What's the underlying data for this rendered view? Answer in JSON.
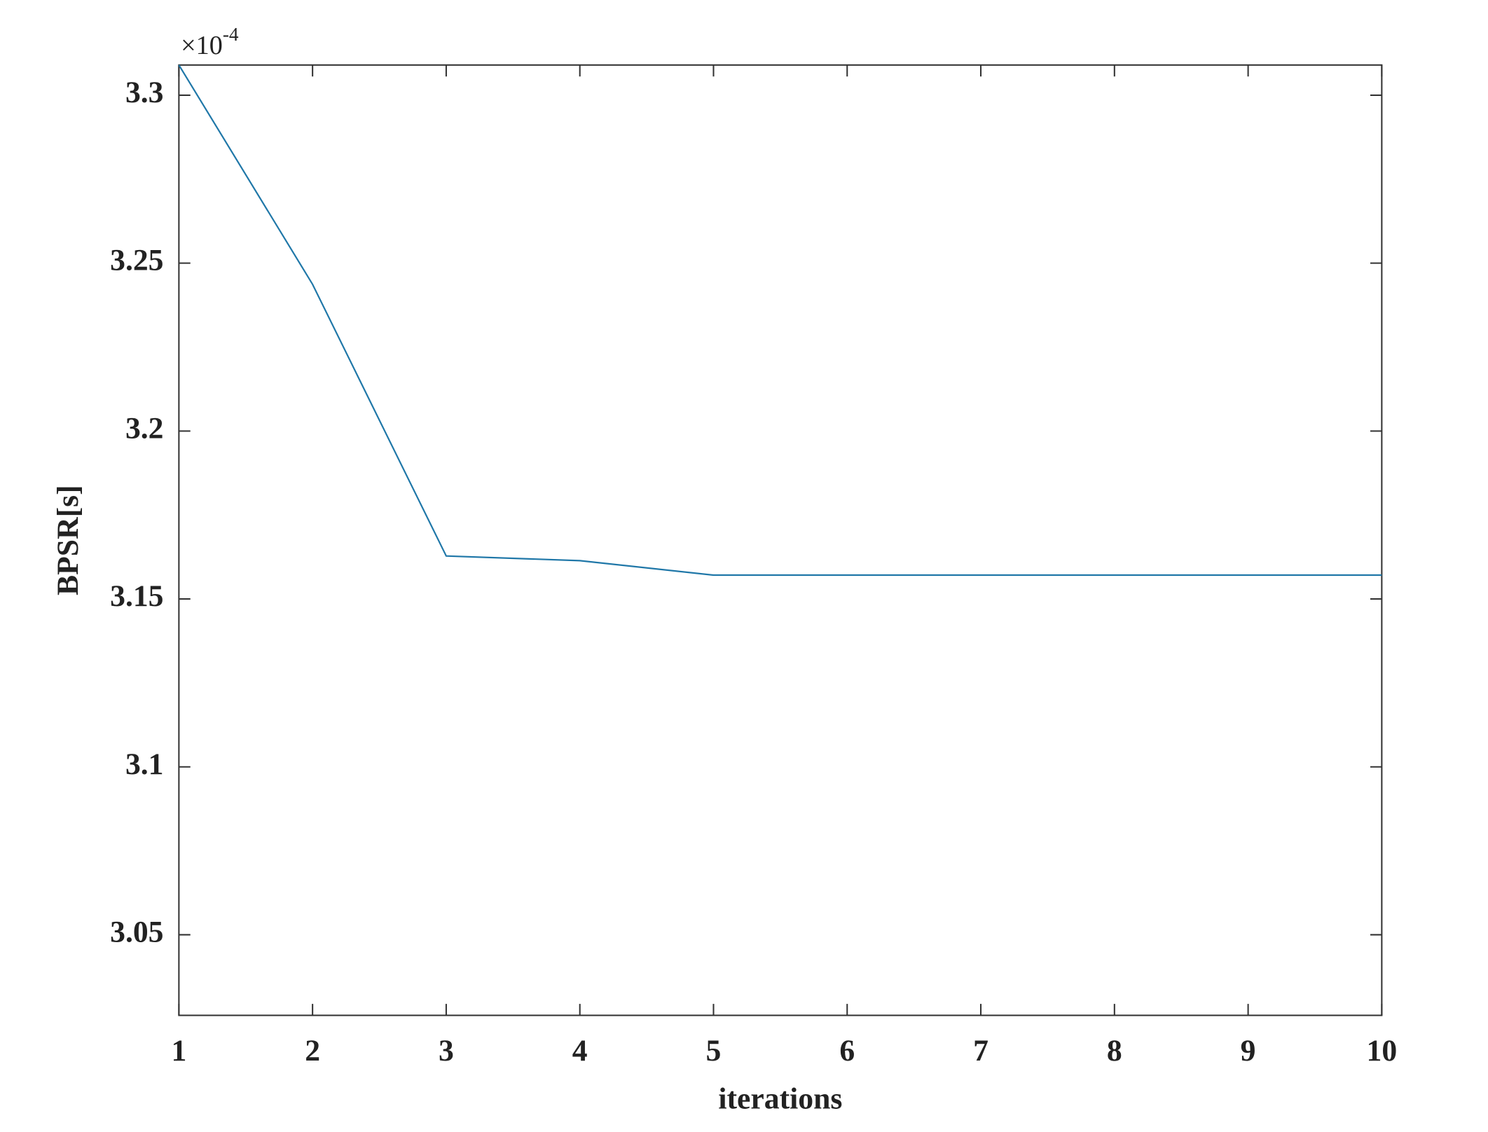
{
  "chart_data": {
    "type": "line",
    "xlabel": "iterations",
    "ylabel": "BPSR[s]",
    "y_multiplier": {
      "base": "×10",
      "exponent": "-4"
    },
    "x": [
      1,
      2,
      3,
      4,
      5,
      6,
      7,
      8,
      9,
      10
    ],
    "series": [
      {
        "color": "#1f77a8",
        "values": [
          3.309,
          3.2437,
          3.1628,
          3.1614,
          3.1571,
          3.1571,
          3.1571,
          3.1571,
          3.1571,
          3.1571
        ]
      }
    ],
    "xlim": [
      1,
      10
    ],
    "xticks": [
      1,
      2,
      3,
      4,
      5,
      6,
      7,
      8,
      9,
      10
    ],
    "ylim": [
      3.026,
      3.309
    ],
    "yticks": [
      3.05,
      3.1,
      3.15,
      3.2,
      3.25,
      3.3
    ],
    "grid": false
  }
}
